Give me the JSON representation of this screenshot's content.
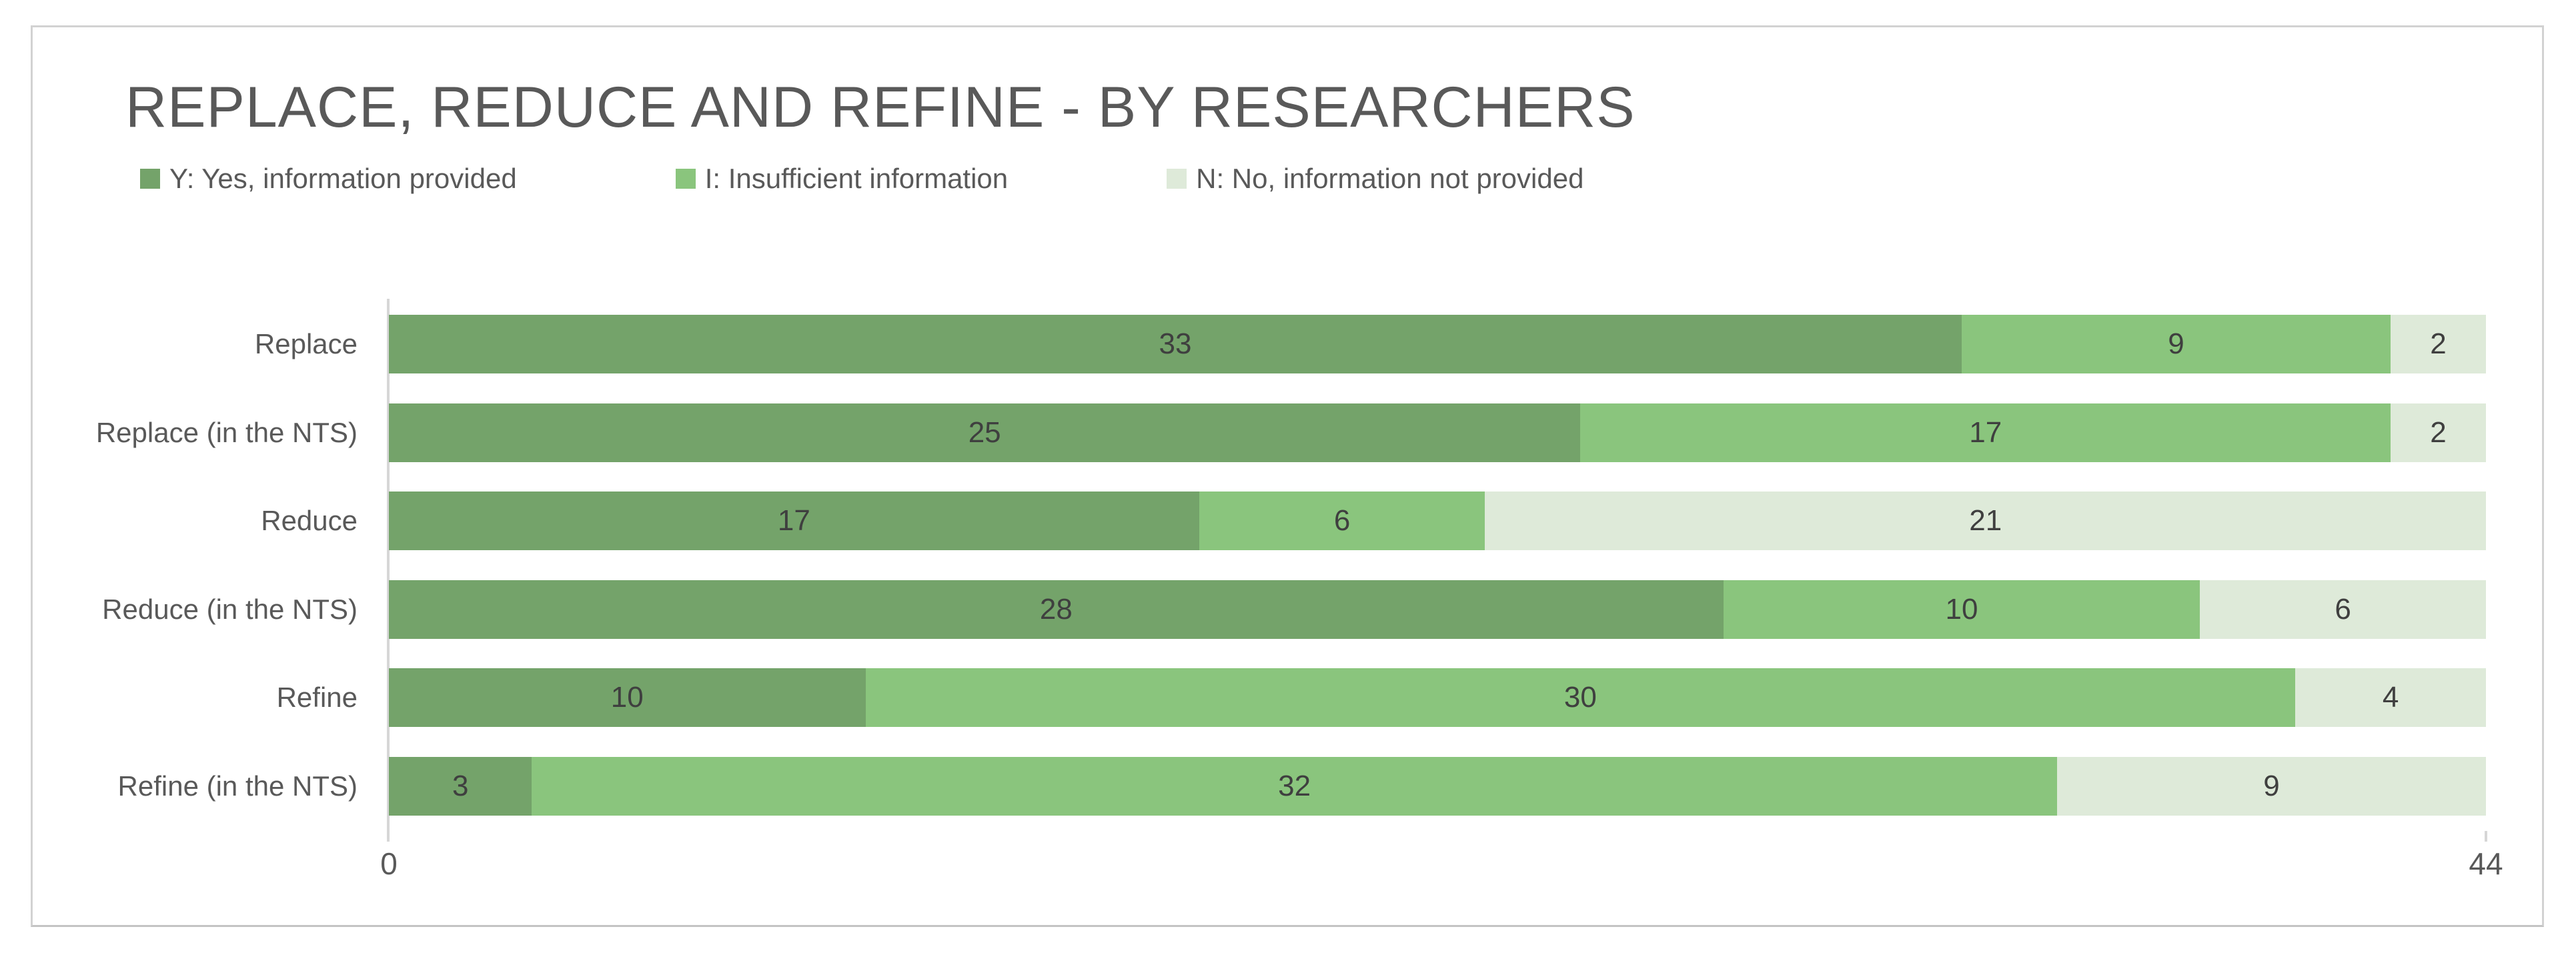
{
  "title": "REPLACE, REDUCE AND REFINE - BY RESEARCHERS",
  "legend": [
    {
      "label": "Y: Yes, information provided",
      "color": "#74a36a"
    },
    {
      "label": "I: Insufficient information",
      "color": "#8ac57d"
    },
    {
      "label": "N: No, information not provided",
      "color": "#deead9"
    }
  ],
  "axis": {
    "min_label": "0",
    "max_label": "44"
  },
  "colors": {
    "series_yes": "#74a36a",
    "series_insufficient": "#8ac57d",
    "series_no": "#deead9",
    "title_text": "#595959",
    "value_text": "#3f3f3f",
    "axis_line": "#d6d6d6"
  },
  "chart_data": {
    "type": "bar",
    "orientation": "horizontal",
    "stacked": true,
    "title": "REPLACE, REDUCE AND REFINE - BY RESEARCHERS",
    "categories": [
      "Replace",
      "Replace (in the NTS)",
      "Reduce",
      "Reduce (in the NTS)",
      "Refine",
      "Refine (in the NTS)"
    ],
    "series": [
      {
        "name": "Y: Yes, information provided",
        "color": "#74a36a",
        "values": [
          33,
          25,
          17,
          28,
          10,
          3
        ]
      },
      {
        "name": "I: Insufficient information",
        "color": "#8ac57d",
        "values": [
          9,
          17,
          6,
          10,
          30,
          32
        ]
      },
      {
        "name": "N: No, information not provided",
        "color": "#deead9",
        "values": [
          2,
          2,
          21,
          6,
          4,
          9
        ]
      }
    ],
    "xlim": [
      0,
      44
    ],
    "x_tick_labels": [
      "0",
      "44"
    ],
    "xlabel": "",
    "ylabel": "",
    "legend_position": "top-left",
    "grid": false,
    "data_labels": true
  }
}
